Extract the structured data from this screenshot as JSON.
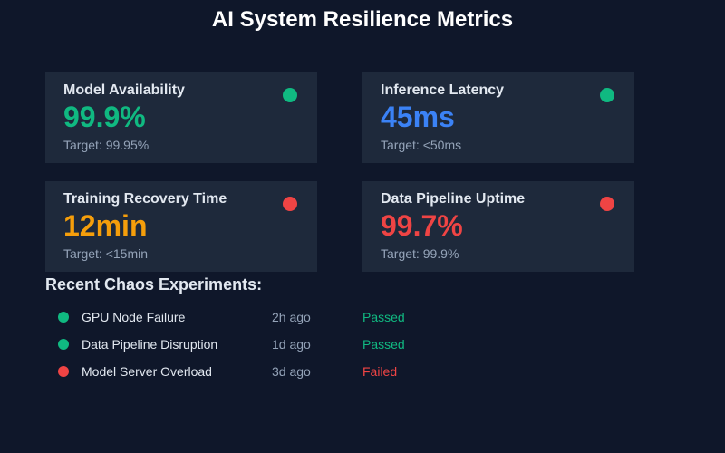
{
  "page": {
    "title": "AI System Resilience Metrics"
  },
  "colors": {
    "background": "#0f172a",
    "card_background": "#1e293b",
    "green": "#10b981",
    "blue": "#3b82f6",
    "orange": "#f59e0b",
    "red": "#ef4444"
  },
  "metrics": [
    {
      "title": "Model Availability",
      "value": "99.9%",
      "target": "Target: 99.95%",
      "value_color": "#10b981",
      "status": "ok",
      "status_color": "#10b981"
    },
    {
      "title": "Inference Latency",
      "value": "45ms",
      "target": "Target: <50ms",
      "value_color": "#3b82f6",
      "status": "ok",
      "status_color": "#10b981"
    },
    {
      "title": "Training Recovery Time",
      "value": "12min",
      "target": "Target: <15min",
      "value_color": "#f59e0b",
      "status": "alert",
      "status_color": "#ef4444"
    },
    {
      "title": "Data Pipeline Uptime",
      "value": "99.7%",
      "target": "Target: 99.9%",
      "value_color": "#ef4444",
      "status": "alert",
      "status_color": "#ef4444"
    }
  ],
  "experiments": {
    "title": "Recent Chaos Experiments:",
    "items": [
      {
        "name": "GPU Node Failure",
        "time": "2h ago",
        "result": "Passed",
        "status_color": "#10b981",
        "result_color": "#10b981"
      },
      {
        "name": "Data Pipeline Disruption",
        "time": "1d ago",
        "result": "Passed",
        "status_color": "#10b981",
        "result_color": "#10b981"
      },
      {
        "name": "Model Server Overload",
        "time": "3d ago",
        "result": "Failed",
        "status_color": "#ef4444",
        "result_color": "#ef4444"
      }
    ]
  }
}
